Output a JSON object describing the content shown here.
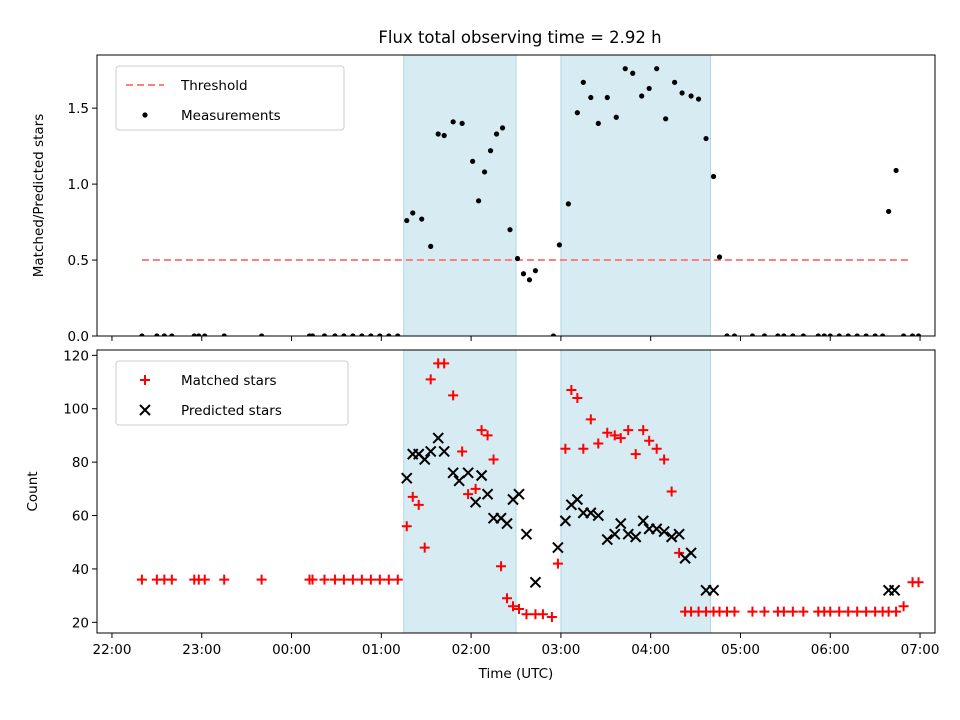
{
  "title": "Flux total observing time = 2.92 h",
  "colors": {
    "threshold": "#ff7f7f",
    "measurement": "#000000",
    "matched": "#ff0000",
    "predicted": "#000000",
    "highlight": "#add8e6"
  },
  "chart_data": [
    {
      "type": "scatter",
      "ylabel": "Matched/Predicted stars",
      "ylim": [
        0,
        1.85
      ],
      "yticks": [
        "0.0",
        "0.5",
        "1.0",
        "1.5"
      ],
      "ytick_values": [
        0,
        0.5,
        1.0,
        1.5
      ],
      "legend": {
        "position": "top-left",
        "entries": [
          "Threshold",
          "Measurements"
        ]
      },
      "threshold": {
        "name": "Threshold",
        "value": 0.5,
        "x_start": "22:20",
        "x_end": "06:52"
      },
      "shaded_intervals": [
        [
          "01:15",
          "02:30"
        ],
        [
          "03:00",
          "04:40"
        ]
      ],
      "series": [
        {
          "name": "Measurements",
          "marker": "dot",
          "x": [
            "22:20",
            "22:30",
            "22:35",
            "22:40",
            "22:55",
            "22:58",
            "23:02",
            "23:15",
            "23:40",
            "00:12",
            "00:14",
            "00:22",
            "00:29",
            "00:35",
            "00:41",
            "00:47",
            "00:53",
            "00:59",
            "01:05",
            "01:11",
            "01:17",
            "01:21",
            "01:27",
            "01:33",
            "01:38",
            "01:42",
            "01:48",
            "01:54",
            "02:01",
            "02:05",
            "02:09",
            "02:13",
            "02:17",
            "02:21",
            "02:26",
            "02:31",
            "02:35",
            "02:39",
            "02:43",
            "02:55",
            "02:59",
            "03:05",
            "03:11",
            "03:15",
            "03:20",
            "03:25",
            "03:31",
            "03:37",
            "03:43",
            "03:48",
            "03:54",
            "03:59",
            "04:04",
            "04:10",
            "04:16",
            "04:21",
            "04:27",
            "04:32",
            "04:37",
            "04:42",
            "04:46",
            "04:51",
            "04:56",
            "05:08",
            "05:16",
            "05:25",
            "05:29",
            "05:35",
            "05:42",
            "05:52",
            "05:56",
            "06:00",
            "06:06",
            "06:12",
            "06:18",
            "06:24",
            "06:30",
            "06:35",
            "06:39",
            "06:44",
            "06:49",
            "06:55",
            "06:59"
          ],
          "y": [
            0,
            0,
            0,
            0,
            0,
            0,
            0,
            0,
            0,
            0,
            0,
            0,
            0,
            0,
            0,
            0,
            0,
            0,
            0,
            0,
            0.76,
            0.81,
            0.77,
            0.59,
            1.33,
            1.32,
            1.41,
            1.4,
            1.15,
            0.89,
            1.08,
            1.22,
            1.33,
            1.37,
            0.7,
            0.51,
            0.41,
            0.37,
            0.43,
            0,
            0.6,
            0.87,
            1.47,
            1.67,
            1.57,
            1.4,
            1.57,
            1.44,
            1.76,
            1.73,
            1.58,
            1.63,
            1.76,
            1.43,
            1.67,
            1.6,
            1.58,
            1.56,
            1.3,
            1.05,
            0.52,
            0,
            0,
            0,
            0,
            0,
            0,
            0,
            0,
            0,
            0,
            0,
            0,
            0,
            0,
            0,
            0,
            0,
            0.82,
            1.09,
            0,
            0,
            0
          ]
        }
      ]
    },
    {
      "type": "scatter",
      "ylabel": "Count",
      "xlabel": "Time (UTC)",
      "ylim": [
        16,
        122
      ],
      "yticks": [
        "20",
        "40",
        "60",
        "80",
        "100",
        "120"
      ],
      "ytick_values": [
        20,
        40,
        60,
        80,
        100,
        120
      ],
      "xticks": [
        "22:00",
        "23:00",
        "00:00",
        "01:00",
        "02:00",
        "03:00",
        "04:00",
        "05:00",
        "06:00",
        "07:00"
      ],
      "legend": {
        "position": "top-left",
        "entries": [
          "Matched stars",
          "Predicted stars"
        ]
      },
      "shaded_intervals": [
        [
          "01:15",
          "02:30"
        ],
        [
          "03:00",
          "04:40"
        ]
      ],
      "series": [
        {
          "name": "Matched stars",
          "marker": "plus",
          "x": [
            "22:20",
            "22:30",
            "22:35",
            "22:40",
            "22:55",
            "22:58",
            "23:02",
            "23:15",
            "23:40",
            "00:12",
            "00:14",
            "00:22",
            "00:29",
            "00:35",
            "00:41",
            "00:47",
            "00:53",
            "00:59",
            "01:05",
            "01:11",
            "01:17",
            "01:21",
            "01:25",
            "01:29",
            "01:33",
            "01:38",
            "01:42",
            "01:48",
            "01:54",
            "01:58",
            "02:03",
            "02:07",
            "02:11",
            "02:15",
            "02:20",
            "02:24",
            "02:28",
            "02:32",
            "02:37",
            "02:43",
            "02:48",
            "02:54",
            "02:58",
            "03:03",
            "03:07",
            "03:11",
            "03:15",
            "03:20",
            "03:25",
            "03:31",
            "03:36",
            "03:40",
            "03:45",
            "03:50",
            "03:55",
            "03:59",
            "04:04",
            "04:09",
            "04:14",
            "04:19",
            "04:23",
            "04:27",
            "04:32",
            "04:37",
            "04:42",
            "04:46",
            "04:51",
            "04:56",
            "05:08",
            "05:16",
            "05:25",
            "05:29",
            "05:35",
            "05:42",
            "05:52",
            "05:56",
            "06:00",
            "06:06",
            "06:12",
            "06:18",
            "06:24",
            "06:30",
            "06:35",
            "06:39",
            "06:44",
            "06:49",
            "06:55",
            "06:59"
          ],
          "y": [
            36,
            36,
            36,
            36,
            36,
            36,
            36,
            36,
            36,
            36,
            36,
            36,
            36,
            36,
            36,
            36,
            36,
            36,
            36,
            36,
            56,
            67,
            64,
            48,
            111,
            117,
            117,
            105,
            84,
            68,
            70,
            92,
            90,
            81,
            41,
            29,
            26,
            25,
            23,
            23,
            23,
            22,
            42,
            85,
            107,
            104,
            85,
            96,
            87,
            91,
            90,
            89,
            92,
            83,
            92,
            88,
            85,
            81,
            69,
            46,
            24,
            24,
            24,
            24,
            24,
            24,
            24,
            24,
            24,
            24,
            24,
            24,
            24,
            24,
            24,
            24,
            24,
            24,
            24,
            24,
            24,
            24,
            24,
            24,
            24,
            26,
            35,
            35
          ]
        },
        {
          "name": "Predicted stars",
          "marker": "x",
          "x": [
            "01:17",
            "01:21",
            "01:25",
            "01:29",
            "01:33",
            "01:38",
            "01:42",
            "01:48",
            "01:52",
            "01:58",
            "02:03",
            "02:07",
            "02:11",
            "02:15",
            "02:20",
            "02:24",
            "02:28",
            "02:32",
            "02:37",
            "02:43",
            "02:58",
            "03:03",
            "03:07",
            "03:11",
            "03:15",
            "03:20",
            "03:25",
            "03:31",
            "03:36",
            "03:40",
            "03:45",
            "03:50",
            "03:55",
            "03:59",
            "04:04",
            "04:09",
            "04:14",
            "04:19",
            "04:23",
            "04:27",
            "04:37",
            "04:42",
            "06:39",
            "06:43"
          ],
          "y": [
            74,
            83,
            83,
            81,
            84,
            89,
            84,
            76,
            73,
            76,
            65,
            75,
            68,
            59,
            59,
            57,
            66,
            68,
            53,
            35,
            48,
            58,
            64,
            66,
            61,
            61,
            60,
            51,
            53,
            57,
            53,
            52,
            58,
            55,
            55,
            54,
            52,
            53,
            44,
            46,
            32,
            32,
            32,
            32
          ]
        }
      ]
    }
  ]
}
